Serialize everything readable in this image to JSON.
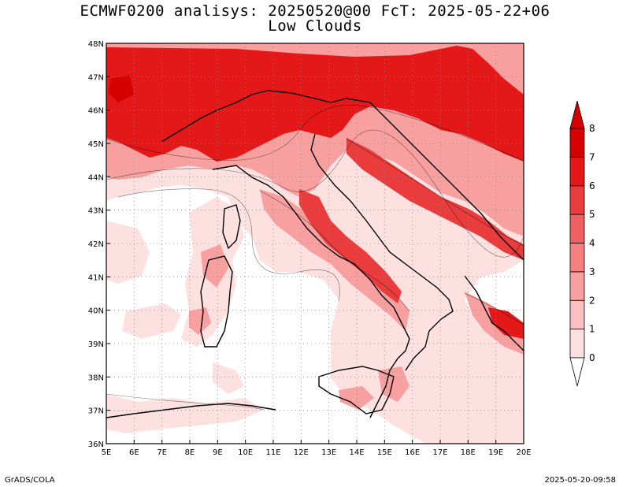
{
  "title": {
    "line1": "ECMWF0200 analisys: 20250520@00 FcT: 2025-05-22+06",
    "line2": "Low Clouds"
  },
  "footer": {
    "left": "GrADS/COLA",
    "right": "2025-05-20-09:58"
  },
  "map": {
    "lon_range": [
      5,
      20
    ],
    "lat_range": [
      36,
      48
    ],
    "lon_ticks": [
      "5E",
      "6E",
      "7E",
      "8E",
      "9E",
      "10E",
      "11E",
      "12E",
      "13E",
      "14E",
      "15E",
      "16E",
      "17E",
      "18E",
      "19E",
      "20E"
    ],
    "lat_ticks": [
      "36N",
      "37N",
      "38N",
      "39N",
      "40N",
      "41N",
      "42N",
      "43N",
      "44N",
      "45N",
      "46N",
      "47N",
      "48N"
    ],
    "grid": "dotted"
  },
  "colorbar": {
    "labels": [
      "0",
      "1",
      "2",
      "3",
      "4",
      "5",
      "6",
      "7",
      "8"
    ],
    "colors": [
      "#ffffff",
      "#fde0e0",
      "#fbc0c0",
      "#f8a0a0",
      "#f58080",
      "#f06060",
      "#ea3c3c",
      "#e41818",
      "#d60000"
    ],
    "over_color": "#d60000",
    "under_color": "#ffffff"
  }
}
